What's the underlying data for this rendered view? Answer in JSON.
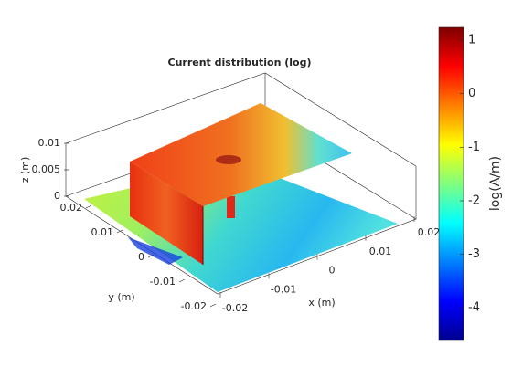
{
  "chart_data": {
    "type": "surface3d",
    "title": "Current distribution (log)",
    "xlabel": "x (m)",
    "ylabel": "y (m)",
    "zlabel": "z (m)",
    "xlim": [
      -0.02,
      0.02
    ],
    "xticks": [
      -0.02,
      -0.01,
      0,
      0.01,
      0.02
    ],
    "ylim": [
      -0.02,
      0.02
    ],
    "yticks": [
      -0.02,
      -0.01,
      0,
      0.01,
      0.02
    ],
    "zlim": [
      0,
      0.01
    ],
    "zticks": [
      0,
      0.005,
      0.01
    ],
    "colorbar": {
      "label": "log(A/m)",
      "lim": [
        -4.61,
        1.24
      ],
      "ticks": [
        -4,
        -3,
        -2,
        -1,
        0,
        1
      ],
      "colormap": "jet"
    }
  }
}
